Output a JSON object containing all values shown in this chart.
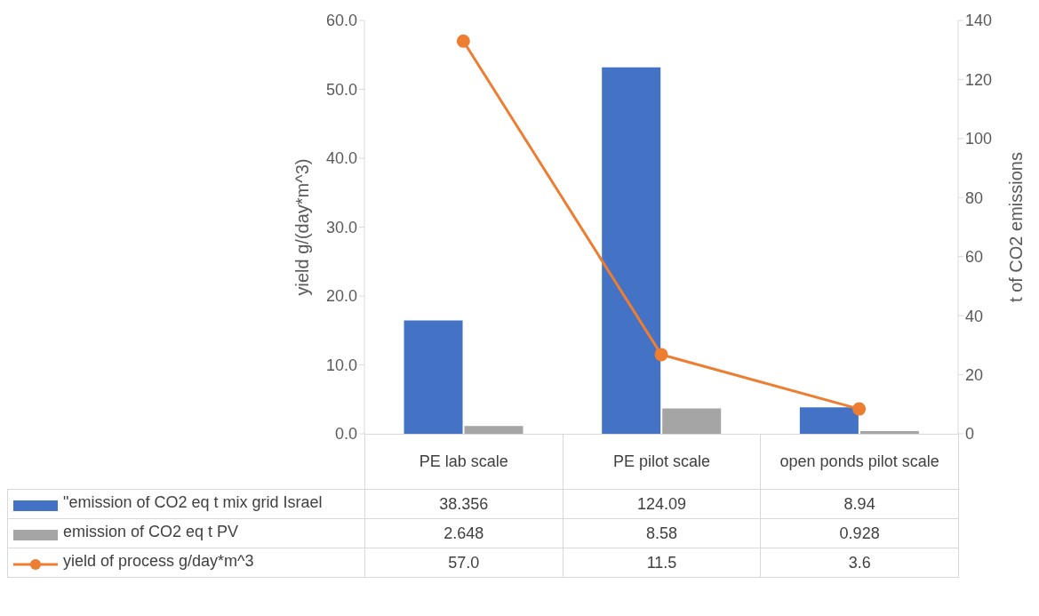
{
  "chart_data": {
    "type": "bar",
    "categories": [
      "PE lab scale",
      "PE pilot scale",
      "open ponds pilot scale"
    ],
    "ylabel": "yield  g/(day*m^3)",
    "y2label": "t of CO2 emissions",
    "series": [
      {
        "name": "\"emission of CO2 eq t mix grid Israel",
        "axis": "y2",
        "color": "#4472c4",
        "values": [
          38.356,
          124.09,
          8.94
        ],
        "value_labels": [
          "38.356",
          "124.09",
          "8.94"
        ]
      },
      {
        "name": "emission of CO2 eq t PV",
        "axis": "y2",
        "color": "#a5a5a5",
        "values": [
          2.648,
          8.58,
          0.928
        ],
        "value_labels": [
          "2.648",
          "8.58",
          "0.928"
        ]
      },
      {
        "name": "yield of process g/day*m^3",
        "type": "line",
        "axis": "y",
        "color": "#ed7d31",
        "values": [
          57.0,
          11.5,
          3.6
        ],
        "value_labels": [
          "57.0",
          "11.5",
          "3.6"
        ],
        "marker": "circle",
        "line_style": "solid"
      }
    ],
    "ylim": [
      0,
      60
    ],
    "yticks": [
      {
        "value": 0,
        "label": "0.0"
      },
      {
        "value": 10,
        "label": "10.0"
      },
      {
        "value": 20,
        "label": "20.0"
      },
      {
        "value": 30,
        "label": "30.0"
      },
      {
        "value": 40,
        "label": "40.0"
      },
      {
        "value": 50,
        "label": "50.0"
      },
      {
        "value": 60,
        "label": "60.0"
      }
    ],
    "y2lim": [
      0,
      140
    ],
    "y2ticks": [
      0,
      20,
      40,
      60,
      80,
      100,
      120,
      140
    ],
    "legend": "bottom left"
  }
}
